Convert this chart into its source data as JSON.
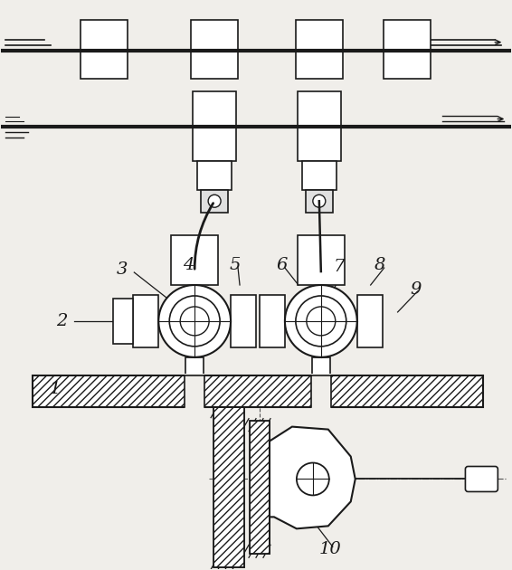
{
  "bg_color": "#f0eeea",
  "line_color": "#1a1a1a",
  "fig_width": 5.66,
  "fig_height": 6.3,
  "dpi": 100
}
